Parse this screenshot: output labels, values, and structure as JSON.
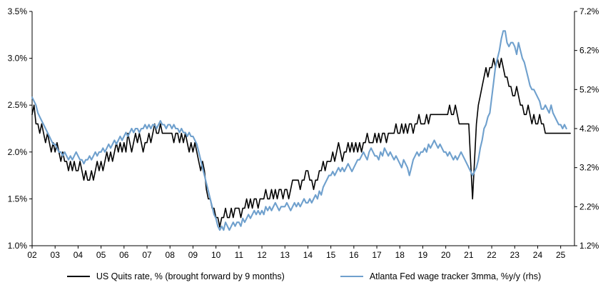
{
  "chart_data": {
    "type": "line",
    "title": "",
    "xlabel": "",
    "ylabel_left": "",
    "ylabel_right": "",
    "grid": false,
    "legend_position": "bottom",
    "x_tick_labels": [
      "02",
      "03",
      "04",
      "05",
      "06",
      "07",
      "08",
      "09",
      "10",
      "11",
      "12",
      "13",
      "14",
      "15",
      "16",
      "17",
      "18",
      "19",
      "20",
      "21",
      "22",
      "23",
      "24",
      "25"
    ],
    "x_tick_start_year": 2002,
    "x_range": [
      2002,
      2025.6
    ],
    "left_axis": {
      "min": 1.0,
      "max": 3.5,
      "tick_values": [
        1.0,
        1.5,
        2.0,
        2.5,
        3.0,
        3.5
      ],
      "tick_labels": [
        "1.0%",
        "1.5%",
        "2.0%",
        "2.5%",
        "3.0%",
        "3.5%"
      ]
    },
    "right_axis": {
      "min": 1.2,
      "max": 7.2,
      "tick_values": [
        1.2,
        2.2,
        3.2,
        4.2,
        5.2,
        6.2,
        7.2
      ],
      "tick_labels": [
        "1.2%",
        "2.2%",
        "3.2%",
        "4.2%",
        "5.2%",
        "6.2%",
        "7.2%"
      ]
    },
    "series": [
      {
        "name": "US Quits rate, % (brought forward by 9 months)",
        "axis": "left",
        "color": "#000000",
        "stroke_width": 1.6,
        "start_year": 2002,
        "interval_months": 1,
        "values": [
          2.4,
          2.5,
          2.3,
          2.3,
          2.2,
          2.3,
          2.2,
          2.1,
          2.2,
          2.1,
          2.0,
          2.1,
          2.0,
          2.1,
          2.0,
          1.9,
          2.0,
          1.9,
          1.9,
          1.8,
          1.9,
          1.8,
          1.9,
          1.8,
          1.8,
          1.9,
          1.8,
          1.7,
          1.8,
          1.7,
          1.7,
          1.8,
          1.7,
          1.8,
          1.9,
          1.8,
          1.9,
          1.8,
          1.9,
          2.0,
          1.9,
          2.0,
          1.9,
          2.0,
          2.1,
          2.0,
          2.1,
          2.0,
          2.1,
          2.0,
          2.2,
          2.1,
          2.0,
          2.1,
          2.2,
          2.1,
          2.2,
          2.1,
          2.0,
          2.1,
          2.1,
          2.2,
          2.1,
          2.2,
          2.3,
          2.2,
          2.2,
          2.3,
          2.2,
          2.2,
          2.2,
          2.2,
          2.2,
          2.2,
          2.1,
          2.2,
          2.2,
          2.1,
          2.2,
          2.1,
          2.2,
          2.1,
          2.0,
          2.1,
          2.0,
          2.1,
          2.0,
          1.9,
          1.8,
          1.9,
          1.8,
          1.6,
          1.5,
          1.5,
          1.4,
          1.4,
          1.3,
          1.3,
          1.2,
          1.3,
          1.3,
          1.4,
          1.3,
          1.3,
          1.4,
          1.3,
          1.4,
          1.4,
          1.4,
          1.3,
          1.4,
          1.4,
          1.5,
          1.4,
          1.5,
          1.4,
          1.5,
          1.5,
          1.4,
          1.5,
          1.5,
          1.5,
          1.6,
          1.5,
          1.5,
          1.6,
          1.5,
          1.6,
          1.5,
          1.6,
          1.6,
          1.5,
          1.6,
          1.6,
          1.5,
          1.6,
          1.7,
          1.7,
          1.7,
          1.7,
          1.6,
          1.7,
          1.7,
          1.8,
          1.8,
          1.7,
          1.7,
          1.6,
          1.7,
          1.7,
          1.8,
          1.8,
          1.9,
          1.8,
          1.9,
          1.9,
          1.9,
          2.0,
          1.9,
          2.0,
          2.1,
          2.0,
          1.9,
          2.0,
          2.0,
          2.1,
          2.0,
          2.1,
          2.0,
          2.1,
          2.0,
          2.1,
          2.0,
          2.1,
          2.1,
          2.2,
          2.1,
          2.1,
          2.1,
          2.2,
          2.1,
          2.2,
          2.1,
          2.2,
          2.2,
          2.1,
          2.2,
          2.2,
          2.2,
          2.2,
          2.3,
          2.2,
          2.2,
          2.3,
          2.2,
          2.3,
          2.2,
          2.3,
          2.3,
          2.2,
          2.3,
          2.3,
          2.4,
          2.3,
          2.3,
          2.3,
          2.4,
          2.3,
          2.4,
          2.4,
          2.4,
          2.4,
          2.4,
          2.4,
          2.4,
          2.4,
          2.4,
          2.4,
          2.5,
          2.4,
          2.4,
          2.5,
          2.4,
          2.3,
          2.3,
          2.3,
          2.3,
          2.3,
          2.3,
          1.9,
          1.5,
          1.9,
          2.3,
          2.5,
          2.6,
          2.7,
          2.8,
          2.9,
          2.8,
          2.9,
          2.9,
          3.0,
          2.9,
          3.0,
          2.9,
          3.0,
          2.9,
          2.8,
          2.8,
          2.7,
          2.7,
          2.6,
          2.6,
          2.7,
          2.6,
          2.5,
          2.5,
          2.4,
          2.4,
          2.5,
          2.4,
          2.3,
          2.4,
          2.3,
          2.3,
          2.4,
          2.3,
          2.3,
          2.2,
          2.2,
          2.2,
          2.2,
          2.2,
          2.2,
          2.2,
          2.2,
          2.2,
          2.2,
          2.2,
          2.2,
          2.2,
          2.2
        ]
      },
      {
        "name": "Atlanta Fed wage tracker 3mma, %y/y (rhs)",
        "axis": "right",
        "color": "#6FA0CD",
        "stroke_width": 2.1,
        "start_year": 2002,
        "interval_months": 1,
        "values": [
          5.0,
          4.9,
          4.8,
          4.6,
          4.5,
          4.4,
          4.3,
          4.2,
          4.1,
          4.0,
          3.9,
          3.8,
          3.8,
          3.7,
          3.6,
          3.6,
          3.5,
          3.6,
          3.5,
          3.4,
          3.5,
          3.4,
          3.5,
          3.6,
          3.5,
          3.4,
          3.4,
          3.3,
          3.4,
          3.4,
          3.5,
          3.4,
          3.5,
          3.6,
          3.5,
          3.6,
          3.6,
          3.7,
          3.6,
          3.7,
          3.8,
          3.7,
          3.8,
          3.9,
          3.8,
          3.9,
          4.0,
          3.9,
          4.0,
          4.1,
          4.0,
          4.1,
          4.2,
          4.1,
          4.2,
          4.2,
          4.1,
          4.2,
          4.2,
          4.3,
          4.2,
          4.3,
          4.2,
          4.3,
          4.3,
          4.2,
          4.3,
          4.4,
          4.3,
          4.3,
          4.2,
          4.3,
          4.3,
          4.2,
          4.3,
          4.2,
          4.2,
          4.1,
          4.2,
          4.1,
          4.1,
          4.0,
          4.1,
          4.0,
          4.0,
          3.9,
          3.8,
          3.6,
          3.4,
          3.2,
          3.0,
          2.8,
          2.6,
          2.4,
          2.2,
          2.0,
          1.9,
          1.7,
          1.6,
          1.7,
          1.6,
          1.8,
          1.7,
          1.6,
          1.7,
          1.8,
          1.7,
          1.8,
          1.8,
          1.7,
          1.9,
          1.8,
          1.9,
          2.0,
          1.9,
          2.0,
          2.1,
          2.0,
          2.1,
          2.0,
          2.1,
          2.0,
          2.2,
          2.1,
          2.2,
          2.1,
          2.2,
          2.3,
          2.2,
          2.1,
          2.2,
          2.2,
          2.2,
          2.3,
          2.2,
          2.1,
          2.2,
          2.3,
          2.2,
          2.3,
          2.2,
          2.3,
          2.4,
          2.3,
          2.3,
          2.4,
          2.3,
          2.4,
          2.5,
          2.4,
          2.6,
          2.5,
          2.7,
          2.8,
          2.9,
          3.0,
          3.0,
          3.1,
          3.0,
          3.1,
          3.2,
          3.1,
          3.2,
          3.1,
          3.2,
          3.3,
          3.2,
          3.1,
          3.2,
          3.3,
          3.4,
          3.4,
          3.5,
          3.6,
          3.5,
          3.4,
          3.6,
          3.7,
          3.6,
          3.5,
          3.5,
          3.4,
          3.6,
          3.5,
          3.7,
          3.6,
          3.5,
          3.6,
          3.5,
          3.4,
          3.5,
          3.4,
          3.3,
          3.2,
          3.4,
          3.3,
          3.2,
          3.0,
          3.2,
          3.4,
          3.5,
          3.6,
          3.5,
          3.6,
          3.6,
          3.7,
          3.6,
          3.8,
          3.7,
          3.8,
          3.9,
          3.8,
          3.7,
          3.8,
          3.7,
          3.6,
          3.6,
          3.5,
          3.6,
          3.5,
          3.4,
          3.5,
          3.4,
          3.5,
          3.6,
          3.5,
          3.4,
          3.3,
          3.2,
          3.1,
          3.0,
          3.1,
          3.2,
          3.4,
          3.7,
          3.9,
          4.2,
          4.3,
          4.5,
          4.6,
          5.0,
          5.4,
          5.8,
          6.0,
          6.2,
          6.5,
          6.7,
          6.7,
          6.4,
          6.3,
          6.4,
          6.4,
          6.3,
          6.1,
          6.4,
          6.2,
          6.0,
          5.9,
          5.7,
          5.5,
          5.3,
          5.2,
          5.2,
          5.1,
          5.0,
          4.9,
          4.7,
          4.7,
          4.8,
          4.7,
          4.6,
          4.8,
          4.6,
          4.5,
          4.4,
          4.3,
          4.3,
          4.2,
          4.3,
          4.2
        ]
      }
    ]
  }
}
